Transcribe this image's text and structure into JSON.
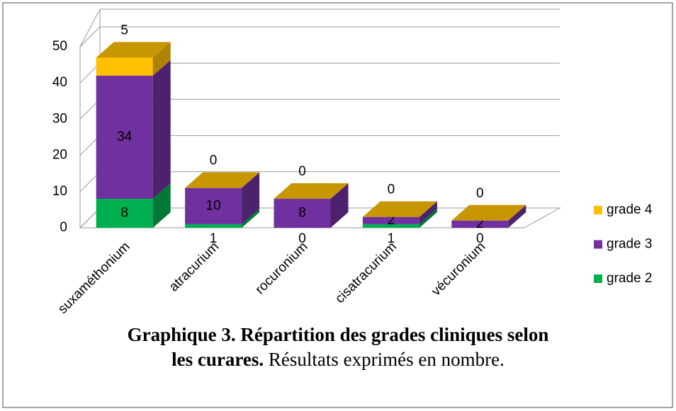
{
  "chart_data": {
    "type": "bar3d_stacked",
    "categories": [
      "suxaméthonium",
      "atracurium",
      "rocuronium",
      "cisatracurium",
      "vécuronium"
    ],
    "series": [
      {
        "name": "grade 2",
        "color": "#00b050",
        "values": [
          8,
          1,
          0,
          1,
          0
        ]
      },
      {
        "name": "grade 3",
        "color": "#7030a0",
        "values": [
          34,
          10,
          8,
          2,
          2
        ]
      },
      {
        "name": "grade 4",
        "color": "#ffc000",
        "values": [
          5,
          0,
          0,
          0,
          0
        ]
      }
    ],
    "ylim": [
      0,
      50
    ],
    "yticks": [
      0,
      10,
      20,
      30,
      40,
      50
    ],
    "grid": true,
    "legend": "right",
    "caption_bold": "Graphique 3. Répartition des grades cliniques selon les curares.",
    "caption_rest": "Résultats exprimés en nombre."
  }
}
